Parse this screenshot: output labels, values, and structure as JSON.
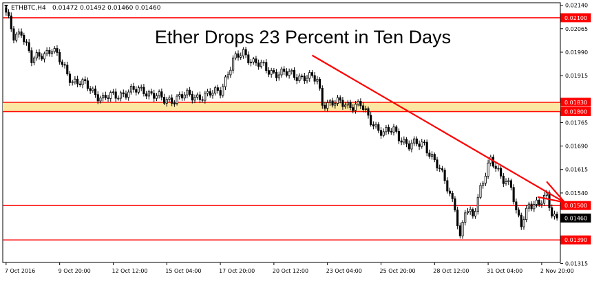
{
  "chart_data": {
    "type": "candlestick",
    "title": "Ether Drops 23 Percent in Ten Days",
    "header": {
      "symbol": "ETHBTC,H4",
      "ohlc": "0.01472 0.01492 0.01460 0.01460"
    },
    "y_range": [
      0.01318,
      0.02148
    ],
    "y_ticks": [
      {
        "value": 0.0214,
        "label": "0.02140"
      },
      {
        "value": 0.02065,
        "label": "0.02065"
      },
      {
        "value": 0.0199,
        "label": "0.01990"
      },
      {
        "value": 0.01915,
        "label": "0.01915"
      },
      {
        "value": 0.01765,
        "label": "0.01765"
      },
      {
        "value": 0.0169,
        "label": "0.01690"
      },
      {
        "value": 0.01615,
        "label": "0.01615"
      },
      {
        "value": 0.0154,
        "label": "0.01540"
      },
      {
        "value": 0.01315,
        "label": "0.01315"
      }
    ],
    "x_ticks": [
      {
        "index": 0,
        "label": "7 Oct 2016"
      },
      {
        "index": 21,
        "label": "9 Oct 20:00"
      },
      {
        "index": 42,
        "label": "12 Oct 12:00"
      },
      {
        "index": 63,
        "label": "15 Oct 04:00"
      },
      {
        "index": 84,
        "label": "17 Oct 20:00"
      },
      {
        "index": 105,
        "label": "20 Oct 12:00"
      },
      {
        "index": 126,
        "label": "23 Oct 04:00"
      },
      {
        "index": 147,
        "label": "25 Oct 20:00"
      },
      {
        "index": 168,
        "label": "28 Oct 12:00"
      },
      {
        "index": 189,
        "label": "31 Oct 04:00"
      },
      {
        "index": 210,
        "label": "2 Nov 20:00"
      }
    ],
    "levels": [
      {
        "value": 0.021,
        "label": "0.02100",
        "color": "#ff0000"
      },
      {
        "value": 0.0183,
        "label": "0.01830",
        "color": "#ff0000"
      },
      {
        "value": 0.018,
        "label": "0.01800",
        "color": "#ff0000"
      },
      {
        "value": 0.015,
        "label": "0.01500",
        "color": "#ff0000"
      },
      {
        "value": 0.0139,
        "label": "0.01390",
        "color": "#ff0000"
      }
    ],
    "current_price": {
      "value": 0.0146,
      "label": "0.01460"
    },
    "zone": {
      "from": 0.018,
      "to": 0.0183,
      "color": "#fbe7a1"
    },
    "trend_arrow": {
      "from": {
        "index": 120,
        "value": 0.0198
      },
      "to": {
        "index": 219,
        "value": 0.0151
      },
      "color": "#ff0000"
    },
    "anchors": [
      {
        "i": 0,
        "p": 0.0211
      },
      {
        "i": 3,
        "p": 0.0204
      },
      {
        "i": 6,
        "p": 0.0206
      },
      {
        "i": 10,
        "p": 0.0196
      },
      {
        "i": 14,
        "p": 0.01985
      },
      {
        "i": 18,
        "p": 0.02
      },
      {
        "i": 22,
        "p": 0.0195
      },
      {
        "i": 26,
        "p": 0.019
      },
      {
        "i": 32,
        "p": 0.0188
      },
      {
        "i": 38,
        "p": 0.0184
      },
      {
        "i": 46,
        "p": 0.0186
      },
      {
        "i": 54,
        "p": 0.0187
      },
      {
        "i": 62,
        "p": 0.01835
      },
      {
        "i": 70,
        "p": 0.0185
      },
      {
        "i": 79,
        "p": 0.0185
      },
      {
        "i": 84,
        "p": 0.0187
      },
      {
        "i": 89,
        "p": 0.0196
      },
      {
        "i": 93,
        "p": 0.0199
      },
      {
        "i": 97,
        "p": 0.0196
      },
      {
        "i": 103,
        "p": 0.0193
      },
      {
        "i": 110,
        "p": 0.0192
      },
      {
        "i": 118,
        "p": 0.0191
      },
      {
        "i": 122,
        "p": 0.019
      },
      {
        "i": 124,
        "p": 0.0183
      },
      {
        "i": 132,
        "p": 0.01825
      },
      {
        "i": 139,
        "p": 0.0182
      },
      {
        "i": 142,
        "p": 0.0178
      },
      {
        "i": 148,
        "p": 0.0173
      },
      {
        "i": 152,
        "p": 0.0174
      },
      {
        "i": 158,
        "p": 0.0169
      },
      {
        "i": 164,
        "p": 0.017
      },
      {
        "i": 168,
        "p": 0.0164
      },
      {
        "i": 172,
        "p": 0.0158
      },
      {
        "i": 176,
        "p": 0.015
      },
      {
        "i": 178,
        "p": 0.0139
      },
      {
        "i": 180,
        "p": 0.0148
      },
      {
        "i": 183,
        "p": 0.0147
      },
      {
        "i": 186,
        "p": 0.0156
      },
      {
        "i": 190,
        "p": 0.0164
      },
      {
        "i": 194,
        "p": 0.016
      },
      {
        "i": 198,
        "p": 0.0156
      },
      {
        "i": 200,
        "p": 0.0147
      },
      {
        "i": 202,
        "p": 0.0144
      },
      {
        "i": 205,
        "p": 0.0151
      },
      {
        "i": 209,
        "p": 0.015
      },
      {
        "i": 212,
        "p": 0.0153
      },
      {
        "i": 214,
        "p": 0.0148
      },
      {
        "i": 216,
        "p": 0.0146
      }
    ],
    "bar_count": 217,
    "bull_color": "#ffffff",
    "bear_color": "#000000",
    "axis_color": "#000000",
    "background": "#ffffff"
  }
}
